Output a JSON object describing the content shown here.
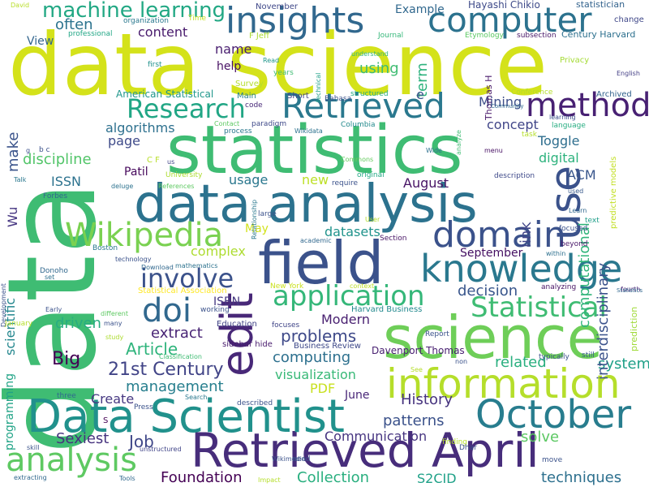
{
  "words": [
    {
      "text": "data science",
      "color": "#d4e21a"
    },
    {
      "text": "data",
      "color": "#3fbc73"
    },
    {
      "text": "statistics",
      "color": "#3fbc73"
    },
    {
      "text": "data analysis",
      "color": "#2c728e"
    },
    {
      "text": "field",
      "color": "#3b528b"
    },
    {
      "text": "knowledge",
      "color": "#2a788e"
    },
    {
      "text": "Retrieved April",
      "color": "#472d7b"
    },
    {
      "text": "science",
      "color": "#6ece58"
    },
    {
      "text": "information",
      "color": "#b5de2b"
    },
    {
      "text": "Data Scientist",
      "color": "#21918c"
    },
    {
      "text": "October",
      "color": "#287d8e"
    },
    {
      "text": "insights",
      "color": "#31688e"
    },
    {
      "text": "computer",
      "color": "#2c728e"
    },
    {
      "text": "Retrieved",
      "color": "#2a788e"
    },
    {
      "text": "method",
      "color": "#482173"
    },
    {
      "text": "Wikipedia",
      "color": "#7ad151"
    },
    {
      "text": "domain",
      "color": "#3b528b"
    },
    {
      "text": "edit",
      "color": "#482878"
    },
    {
      "text": "use",
      "color": "#3b528b"
    },
    {
      "text": "analysis",
      "color": "#5ec962"
    },
    {
      "text": "application",
      "color": "#35b779"
    },
    {
      "text": "Statistical",
      "color": "#3fbc73"
    },
    {
      "text": "doi",
      "color": "#31688e"
    },
    {
      "text": "involve",
      "color": "#3b528b"
    },
    {
      "text": "Research",
      "color": "#21a685"
    },
    {
      "text": "machine learning",
      "color": "#22a884"
    },
    {
      "text": "21st Century",
      "color": "#414487"
    },
    {
      "text": "History",
      "color": "#46337e"
    },
    {
      "text": "management",
      "color": "#277f8e"
    },
    {
      "text": "visualization",
      "color": "#38b977"
    },
    {
      "text": "computing",
      "color": "#2d708e"
    },
    {
      "text": "problems",
      "color": "#3e4989"
    },
    {
      "text": "Modern",
      "color": "#481f70"
    },
    {
      "text": "Big",
      "color": "#440154"
    },
    {
      "text": "Article",
      "color": "#2fb47c"
    },
    {
      "text": "extract",
      "color": "#482475"
    },
    {
      "text": "driven",
      "color": "#27ad81"
    },
    {
      "text": "decision",
      "color": "#39568c"
    },
    {
      "text": "related",
      "color": "#29af7f"
    },
    {
      "text": "system",
      "color": "#1fa088"
    },
    {
      "text": "patterns",
      "color": "#3b528b"
    },
    {
      "text": "Create",
      "color": "#453781"
    },
    {
      "text": "Job",
      "color": "#3f4788"
    },
    {
      "text": "Sexiest",
      "color": "#46327e"
    },
    {
      "text": "Foundation",
      "color": "#440154"
    },
    {
      "text": "Collection",
      "color": "#29af7f"
    },
    {
      "text": "S2CID",
      "color": "#1fa188"
    },
    {
      "text": "techniques",
      "color": "#2d708e"
    },
    {
      "text": "solve",
      "color": "#5cc863"
    },
    {
      "text": "Communication",
      "color": "#463480"
    },
    {
      "text": "PDF",
      "color": "#c8e020"
    },
    {
      "text": "June",
      "color": "#482677"
    },
    {
      "text": "algorithms",
      "color": "#2d708e"
    },
    {
      "text": "page",
      "color": "#3e4a89"
    },
    {
      "text": "discipline",
      "color": "#52c569"
    },
    {
      "text": "concept",
      "color": "#404588"
    },
    {
      "text": "Toggle",
      "color": "#2e6e8e"
    },
    {
      "text": "digital",
      "color": "#2db27d"
    },
    {
      "text": "ACM",
      "color": "#39568c"
    },
    {
      "text": "computational",
      "color": "#31b57b"
    },
    {
      "text": "interdisciplinary",
      "color": "#3b528b"
    },
    {
      "text": "datasets",
      "color": "#20938c"
    },
    {
      "text": "complex",
      "color": "#addc30"
    },
    {
      "text": "May",
      "color": "#d2e21b"
    },
    {
      "text": "usage",
      "color": "#2a778e"
    },
    {
      "text": "new",
      "color": "#bddf26"
    },
    {
      "text": "August",
      "color": "#471365"
    },
    {
      "text": "September",
      "color": "#440f62"
    },
    {
      "text": "link",
      "color": "#404588"
    },
    {
      "text": "Mining",
      "color": "#3d4e8a"
    },
    {
      "text": "often",
      "color": "#2c738e"
    },
    {
      "text": "View",
      "color": "#32658e"
    },
    {
      "text": "content",
      "color": "#481a6c"
    },
    {
      "text": "term",
      "color": "#2db27d"
    },
    {
      "text": "name",
      "color": "#481d6f"
    },
    {
      "text": "help",
      "color": "#471063"
    },
    {
      "text": "using",
      "color": "#3fbc73"
    },
    {
      "text": "make",
      "color": "#3a538b"
    },
    {
      "text": "ISSN",
      "color": "#2c728e"
    },
    {
      "text": "Patil",
      "color": "#46085c"
    },
    {
      "text": "Wu",
      "color": "#453581"
    },
    {
      "text": "scientific",
      "color": "#24878e"
    },
    {
      "text": "ISBN",
      "color": "#453781"
    },
    {
      "text": "programming",
      "color": "#20a386"
    },
    {
      "text": "Example",
      "color": "#31688e"
    },
    {
      "text": "Hayashi Chikio",
      "color": "#3e4a89"
    },
    {
      "text": "statistician",
      "color": "#33638d"
    },
    {
      "text": "Century Harvard",
      "color": "#2d708e"
    },
    {
      "text": "American Statistical",
      "color": "#1f968b"
    },
    {
      "text": "Harvard Business",
      "color": "#23898e"
    },
    {
      "text": "Business Review",
      "color": "#3e4989"
    },
    {
      "text": "Davenport Thomas",
      "color": "#482071"
    },
    {
      "text": "Statistical Association",
      "color": "#fde725"
    },
    {
      "text": "New York",
      "color": "#cae11f"
    },
    {
      "text": "Education",
      "color": "#414487"
    },
    {
      "text": "sidebar hide",
      "color": "#481b6d"
    },
    {
      "text": "Report",
      "color": "#3b528b"
    },
    {
      "text": "typically",
      "color": "#3b528b"
    },
    {
      "text": "still",
      "color": "#375a8c"
    },
    {
      "text": "Thomas H",
      "color": "#48186a"
    },
    {
      "text": "Conference",
      "color": "#b5de2b"
    },
    {
      "text": "Archived",
      "color": "#33638d"
    },
    {
      "text": "language",
      "color": "#27ad81"
    },
    {
      "text": "Privacy",
      "color": "#a5db36"
    },
    {
      "text": "English",
      "color": "#433e85"
    },
    {
      "text": "change",
      "color": "#3f4788"
    },
    {
      "text": "subsection",
      "color": "#481769"
    },
    {
      "text": "Etymology",
      "color": "#5cc863"
    },
    {
      "text": "Journal",
      "color": "#35b779"
    },
    {
      "text": "F Jeff",
      "color": "#aadc32"
    },
    {
      "text": "professional",
      "color": "#21a685"
    },
    {
      "text": "organization",
      "color": "#2a788e"
    },
    {
      "text": "Time",
      "color": "#c2df23"
    },
    {
      "text": "November",
      "color": "#3f4788"
    },
    {
      "text": "David",
      "color": "#b8de29"
    },
    {
      "text": "Main",
      "color": "#27808e"
    },
    {
      "text": "Short",
      "color": "#404588"
    },
    {
      "text": "Survey",
      "color": "#b5de2b"
    },
    {
      "text": "years",
      "color": "#3fbc73"
    },
    {
      "text": "Read",
      "color": "#1f968b"
    },
    {
      "text": "first",
      "color": "#21918c"
    },
    {
      "text": "understand",
      "color": "#31b57b"
    },
    {
      "text": "structured",
      "color": "#25ab82"
    },
    {
      "text": "Bahasa",
      "color": "#3b528b"
    },
    {
      "text": "technical",
      "color": "#1fa088"
    },
    {
      "text": "code",
      "color": "#482878"
    },
    {
      "text": "paradigm",
      "color": "#3e4989"
    },
    {
      "text": "Wikidata",
      "color": "#2c728e"
    },
    {
      "text": "Columbia",
      "color": "#238a8d"
    },
    {
      "text": "Contact",
      "color": "#5ec962"
    },
    {
      "text": "process",
      "color": "#2a788e"
    },
    {
      "text": "Community",
      "color": "#31688e"
    },
    {
      "text": "task",
      "color": "#b5de2b"
    },
    {
      "text": "analyze",
      "color": "#3fbc73"
    },
    {
      "text": "Wide",
      "color": "#2d708e"
    },
    {
      "text": "menu",
      "color": "#471063"
    },
    {
      "text": "Commons",
      "color": "#65cb5e"
    },
    {
      "text": "learning",
      "color": "#3d4d8a"
    },
    {
      "text": "predictive models",
      "color": "#c2df23"
    },
    {
      "text": "description",
      "color": "#3e4989"
    },
    {
      "text": "used",
      "color": "#38598c"
    },
    {
      "text": "Learn",
      "color": "#31688e"
    },
    {
      "text": "text",
      "color": "#1f9e89"
    },
    {
      "text": "focused",
      "color": "#3b528b"
    },
    {
      "text": "beyond",
      "color": "#481668"
    },
    {
      "text": "within",
      "color": "#2d708e"
    },
    {
      "text": "analyzing",
      "color": "#471365"
    },
    {
      "text": "prediction",
      "color": "#a0da39"
    },
    {
      "text": "fourth",
      "color": "#482878"
    },
    {
      "text": "Talk",
      "color": "#2a788e"
    },
    {
      "text": "Forbes",
      "color": "#31688e"
    },
    {
      "text": "C F",
      "color": "#b8de29"
    },
    {
      "text": "us",
      "color": "#404588"
    },
    {
      "text": "University",
      "color": "#addc30"
    },
    {
      "text": "References",
      "color": "#5ec962"
    },
    {
      "text": "deluge",
      "color": "#2c728e"
    },
    {
      "text": "require",
      "color": "#3b528b"
    },
    {
      "text": "original",
      "color": "#22a884"
    },
    {
      "text": "Relationship",
      "color": "#2a788e"
    },
    {
      "text": "large",
      "color": "#3b528b"
    },
    {
      "text": "User",
      "color": "#b5de2b"
    },
    {
      "text": "Section",
      "color": "#471365"
    },
    {
      "text": "academic",
      "color": "#31688e"
    },
    {
      "text": "context",
      "color": "#bddf26"
    },
    {
      "text": "working",
      "color": "#3b528b"
    },
    {
      "text": "different",
      "color": "#5ec962"
    },
    {
      "text": "many",
      "color": "#3b528b"
    },
    {
      "text": "study",
      "color": "#addc30"
    },
    {
      "text": "Classification",
      "color": "#3fbc73"
    },
    {
      "text": "focuses",
      "color": "#404588"
    },
    {
      "text": "Development",
      "color": "#3b528b"
    },
    {
      "text": "Donoho",
      "color": "#31688e"
    },
    {
      "text": "Boston",
      "color": "#2a788e"
    },
    {
      "text": "technology",
      "color": "#3b528b"
    },
    {
      "text": "Download",
      "color": "#31688e"
    },
    {
      "text": "mathematics",
      "color": "#2c728e"
    },
    {
      "text": "set",
      "color": "#2d708e"
    },
    {
      "text": "Early",
      "color": "#3b528b"
    },
    {
      "text": "January",
      "color": "#b5de2b"
    },
    {
      "text": "Press",
      "color": "#3b528b"
    },
    {
      "text": "Search",
      "color": "#2a788e"
    },
    {
      "text": "three",
      "color": "#31688e"
    },
    {
      "text": "described",
      "color": "#3b528b"
    },
    {
      "text": "skill",
      "color": "#3b528b"
    },
    {
      "text": "unstructured",
      "color": "#404588"
    },
    {
      "text": "extracting",
      "color": "#31688e"
    },
    {
      "text": "Tools",
      "color": "#31688e"
    },
    {
      "text": "Impact",
      "color": "#b5de2b"
    },
    {
      "text": "Wikimedia",
      "color": "#3b528b"
    },
    {
      "text": "need",
      "color": "#3b528b"
    },
    {
      "text": "finding",
      "color": "#b5de2b"
    },
    {
      "text": "Dhar",
      "color": "#3b528b"
    },
    {
      "text": "move",
      "color": "#3b528b"
    },
    {
      "text": "non",
      "color": "#3b528b"
    },
    {
      "text": "See",
      "color": "#b5de2b"
    },
    {
      "text": "S",
      "color": "#440154"
    },
    {
      "text": "b c",
      "color": "#3b528b"
    },
    {
      "text": "g",
      "color": "#3b528b"
    },
    {
      "text": "e",
      "color": "#3b528b"
    },
    {
      "text": "Statistics",
      "color": "#31688e"
    }
  ]
}
